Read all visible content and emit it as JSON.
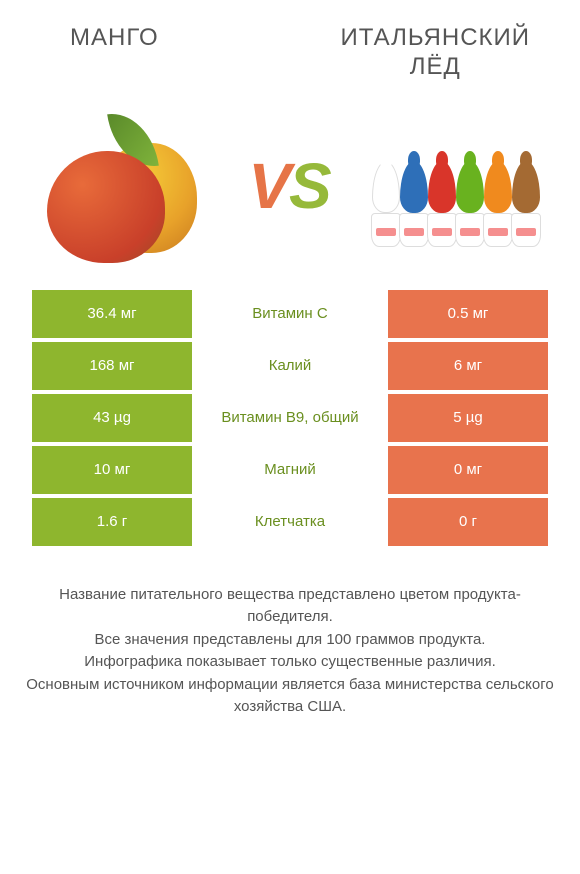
{
  "titles": {
    "left": "MАНГО",
    "right": "ИТАЛЬЯНСКИЙ\nЛЁД"
  },
  "vs": {
    "v": "V",
    "s": "S"
  },
  "colors": {
    "green": "#8eb62e",
    "orange": "#e8734d",
    "label_text": "#6a8f1f",
    "ice_swirls": [
      "#ffffff",
      "#2e6fb8",
      "#d9352a",
      "#69b21f",
      "#f08a1e",
      "#a46a33"
    ]
  },
  "rows": [
    {
      "left": "36.4 мг",
      "label": "Витамин C",
      "right": "0.5 мг",
      "left_bg": "g",
      "right_bg": "o"
    },
    {
      "left": "168 мг",
      "label": "Калий",
      "right": "6 мг",
      "left_bg": "g",
      "right_bg": "o"
    },
    {
      "left": "43 µg",
      "label": "Витамин B9, общий",
      "right": "5 µg",
      "left_bg": "g",
      "right_bg": "o"
    },
    {
      "left": "10 мг",
      "label": "Магний",
      "right": "0 мг",
      "left_bg": "g",
      "right_bg": "o"
    },
    {
      "left": "1.6 г",
      "label": "Клетчатка",
      "right": "0 г",
      "left_bg": "g",
      "right_bg": "o"
    }
  ],
  "footnote": {
    "l1": "Название питательного вещества представлено цветом продукта-победителя.",
    "l2": "Все значения представлены для 100 граммов продукта.",
    "l3": "Инфографика показывает только существенные различия.",
    "l4": "Основным источником информации является база министерства сельского хозяйства США."
  }
}
